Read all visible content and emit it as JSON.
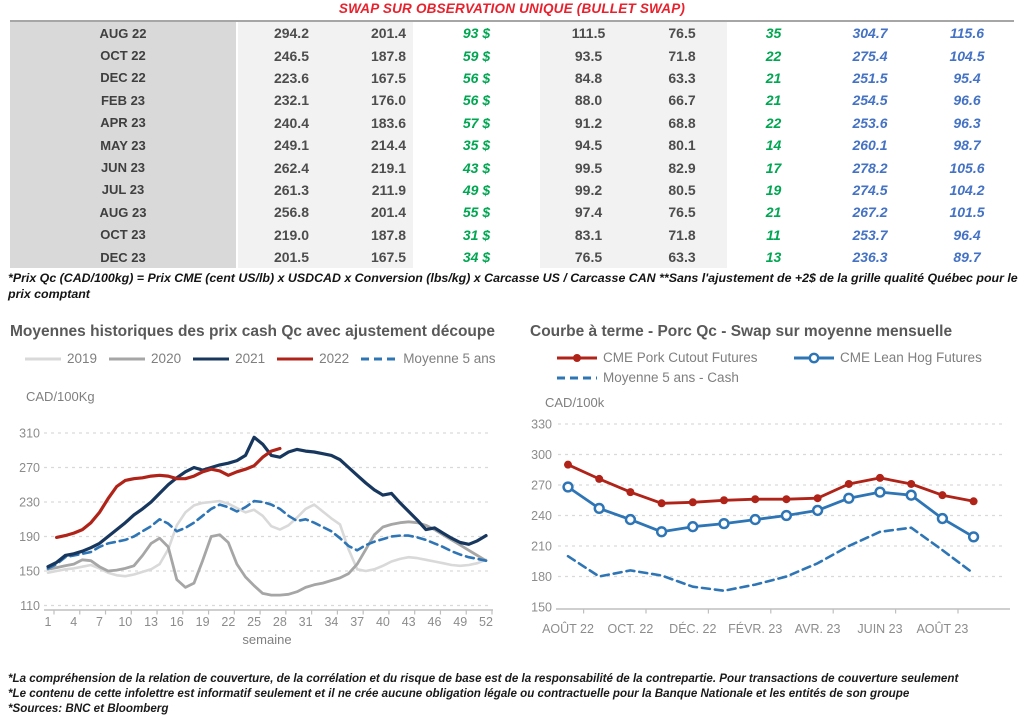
{
  "title": "SWAP SUR OBSERVATION UNIQUE (BULLET SWAP)",
  "table": {
    "rows": [
      [
        "AUG 22",
        "294.2",
        "201.4",
        "93 $",
        "111.5",
        "76.5",
        "35",
        "304.7",
        "115.6"
      ],
      [
        "OCT 22",
        "246.5",
        "187.8",
        "59 $",
        "93.5",
        "71.8",
        "22",
        "275.4",
        "104.5"
      ],
      [
        "DEC 22",
        "223.6",
        "167.5",
        "56 $",
        "84.8",
        "63.3",
        "21",
        "251.5",
        "95.4"
      ],
      [
        "FEB 23",
        "232.1",
        "176.0",
        "56 $",
        "88.0",
        "66.7",
        "21",
        "254.5",
        "96.6"
      ],
      [
        "APR 23",
        "240.4",
        "183.6",
        "57 $",
        "91.2",
        "68.8",
        "22",
        "253.6",
        "96.3"
      ],
      [
        "MAY 23",
        "249.1",
        "214.4",
        "35 $",
        "94.5",
        "80.1",
        "14",
        "260.1",
        "98.7"
      ],
      [
        "JUN 23",
        "262.4",
        "219.1",
        "43 $",
        "99.5",
        "82.9",
        "17",
        "278.2",
        "105.6"
      ],
      [
        "JUL 23",
        "261.3",
        "211.9",
        "49 $",
        "99.2",
        "80.5",
        "19",
        "274.5",
        "104.2"
      ],
      [
        "AUG 23",
        "256.8",
        "201.4",
        "55 $",
        "97.4",
        "76.5",
        "21",
        "267.2",
        "101.5"
      ],
      [
        "OCT 23",
        "219.0",
        "187.8",
        "31 $",
        "83.1",
        "71.8",
        "11",
        "253.7",
        "96.4"
      ],
      [
        "DEC 23",
        "201.5",
        "167.5",
        "34 $",
        "76.5",
        "63.3",
        "13",
        "236.3",
        "89.7"
      ]
    ]
  },
  "footnote": "*Prix Qc (CAD/100kg) = Prix CME (cent US/lb) x USDCAD x Conversion (lbs/kg) x Carcasse US / Carcasse CAN **Sans l'ajustement de +2$ de la grille qualité Québec pour le prix comptant",
  "chart_data": [
    {
      "type": "line",
      "title": "Moyennes historiques des prix cash Qc avec ajustement découpe",
      "ylabel": "CAD/100Kg",
      "xlabel": "semaine",
      "ylim": [
        110,
        310
      ],
      "yticks": [
        110,
        150,
        190,
        230,
        270,
        310
      ],
      "xticks": [
        1,
        4,
        7,
        10,
        13,
        16,
        19,
        22,
        25,
        28,
        31,
        34,
        37,
        40,
        43,
        46,
        49,
        52
      ],
      "grid": "horizontal-dashed",
      "legend_position": "top",
      "series": [
        {
          "name": "2019",
          "color": "#d9d9d9",
          "style": "solid",
          "marker": "none",
          "start_x": 1,
          "values": [
            148,
            150,
            152,
            153,
            155,
            157,
            153,
            148,
            145,
            144,
            146,
            149,
            152,
            158,
            175,
            203,
            218,
            226,
            229,
            230,
            231,
            228,
            223,
            218,
            221,
            214,
            202,
            198,
            203,
            212,
            222,
            227,
            219,
            211,
            204,
            175,
            152,
            150,
            152,
            156,
            161,
            164,
            166,
            165,
            163,
            161,
            159,
            157,
            156,
            157,
            159,
            163
          ]
        },
        {
          "name": "2020",
          "color": "#a6a6a6",
          "style": "solid",
          "marker": "none",
          "start_x": 1,
          "values": [
            152,
            154,
            156,
            158,
            163,
            162,
            155,
            150,
            151,
            153,
            156,
            168,
            182,
            188,
            178,
            140,
            131,
            136,
            162,
            190,
            192,
            183,
            158,
            143,
            133,
            124,
            122,
            122,
            123,
            126,
            131,
            134,
            136,
            139,
            142,
            147,
            158,
            175,
            192,
            201,
            204,
            206,
            207,
            206,
            203,
            198,
            192,
            186,
            180,
            174,
            168,
            162
          ]
        },
        {
          "name": "2021",
          "color": "#17375e",
          "style": "solid",
          "marker": "none",
          "start_x": 1,
          "values": [
            155,
            160,
            168,
            170,
            173,
            177,
            182,
            190,
            198,
            206,
            215,
            222,
            230,
            240,
            250,
            258,
            265,
            270,
            267,
            270,
            273,
            275,
            278,
            284,
            305,
            297,
            284,
            282,
            288,
            291,
            289,
            288,
            286,
            284,
            279,
            270,
            261,
            252,
            244,
            238,
            240,
            229,
            219,
            209,
            198,
            200,
            194,
            188,
            183,
            181,
            185,
            191
          ]
        },
        {
          "name": "2022",
          "color": "#b02318",
          "style": "solid",
          "marker": "none",
          "start_x": 2,
          "values": [
            189,
            191,
            194,
            198,
            206,
            218,
            234,
            248,
            255,
            257,
            258,
            260,
            261,
            260,
            257,
            257,
            260,
            265,
            268,
            266,
            261,
            265,
            268,
            272,
            282,
            289,
            292
          ]
        },
        {
          "name": "Moyenne 5 ans",
          "color": "#2e75b6",
          "style": "dashed",
          "marker": "none",
          "start_x": 1,
          "values": [
            153,
            158,
            166,
            168,
            170,
            172,
            178,
            182,
            184,
            186,
            190,
            196,
            202,
            210,
            205,
            196,
            200,
            206,
            214,
            222,
            227,
            224,
            219,
            224,
            231,
            230,
            227,
            222,
            214,
            208,
            210,
            206,
            201,
            196,
            188,
            179,
            174,
            180,
            184,
            187,
            190,
            191,
            191,
            189,
            186,
            182,
            178,
            173,
            169,
            166,
            164,
            162
          ]
        }
      ]
    },
    {
      "type": "line",
      "title": "Courbe à terme - Porc Qc - Swap sur moyenne mensuelle",
      "ylabel": "CAD/100k",
      "xlabel": "",
      "ylim": [
        150,
        330
      ],
      "yticks": [
        150,
        180,
        210,
        240,
        270,
        300,
        330
      ],
      "x_labels": [
        "AOÛT 22",
        "OCT. 22",
        "DÉC. 22",
        "FÉVR. 23",
        "AVR. 23",
        "JUIN 23",
        "AOÛT 23"
      ],
      "x_label_positions": [
        0,
        2,
        4,
        6,
        8,
        10,
        12
      ],
      "grid": "horizontal-dashed",
      "legend_position": "top",
      "series": [
        {
          "name": "CME Pork Cutout Futures",
          "color": "#b02318",
          "style": "solid",
          "marker": "filled",
          "values": [
            290,
            276,
            263,
            252,
            253,
            255,
            256,
            256,
            257,
            271,
            277,
            271,
            260,
            254
          ]
        },
        {
          "name": "CME Lean Hog Futures",
          "color": "#2e75b6",
          "style": "solid",
          "marker": "open",
          "values": [
            268,
            247,
            236,
            224,
            229,
            232,
            236,
            240,
            245,
            257,
            263,
            260,
            237,
            219
          ]
        },
        {
          "name": "Moyenne 5 ans - Cash",
          "color": "#2e75b6",
          "style": "dashed",
          "marker": "none",
          "values": [
            200,
            180,
            186,
            181,
            170,
            166,
            172,
            180,
            193,
            210,
            224,
            228,
            206,
            183
          ]
        }
      ]
    }
  ],
  "footer": {
    "lines": [
      "*La compréhension de la relation de couverture, de la corrélation et du risque de base est de la responsabilité de la contrepartie. Pour transactions de couverture seulement",
      "*Le contenu de cette infolettre est informatif seulement et il ne crée aucune obligation légale ou contractuelle pour la Banque Nationale et les entités de son groupe",
      "*Sources: BNC et Bloomberg"
    ]
  },
  "colors": {
    "title_red": "#e8212d",
    "table_green": "#00a651",
    "table_blue": "#4472c4",
    "month_col_bg": "#d9d9d9",
    "shade_col_bg": "#f2f2f2",
    "grid_line": "#d9d9d9",
    "axis_text": "#8c8c8c",
    "navy_2021": "#17375e",
    "red_2022": "#b02318",
    "blue_mean": "#2e75b6"
  }
}
